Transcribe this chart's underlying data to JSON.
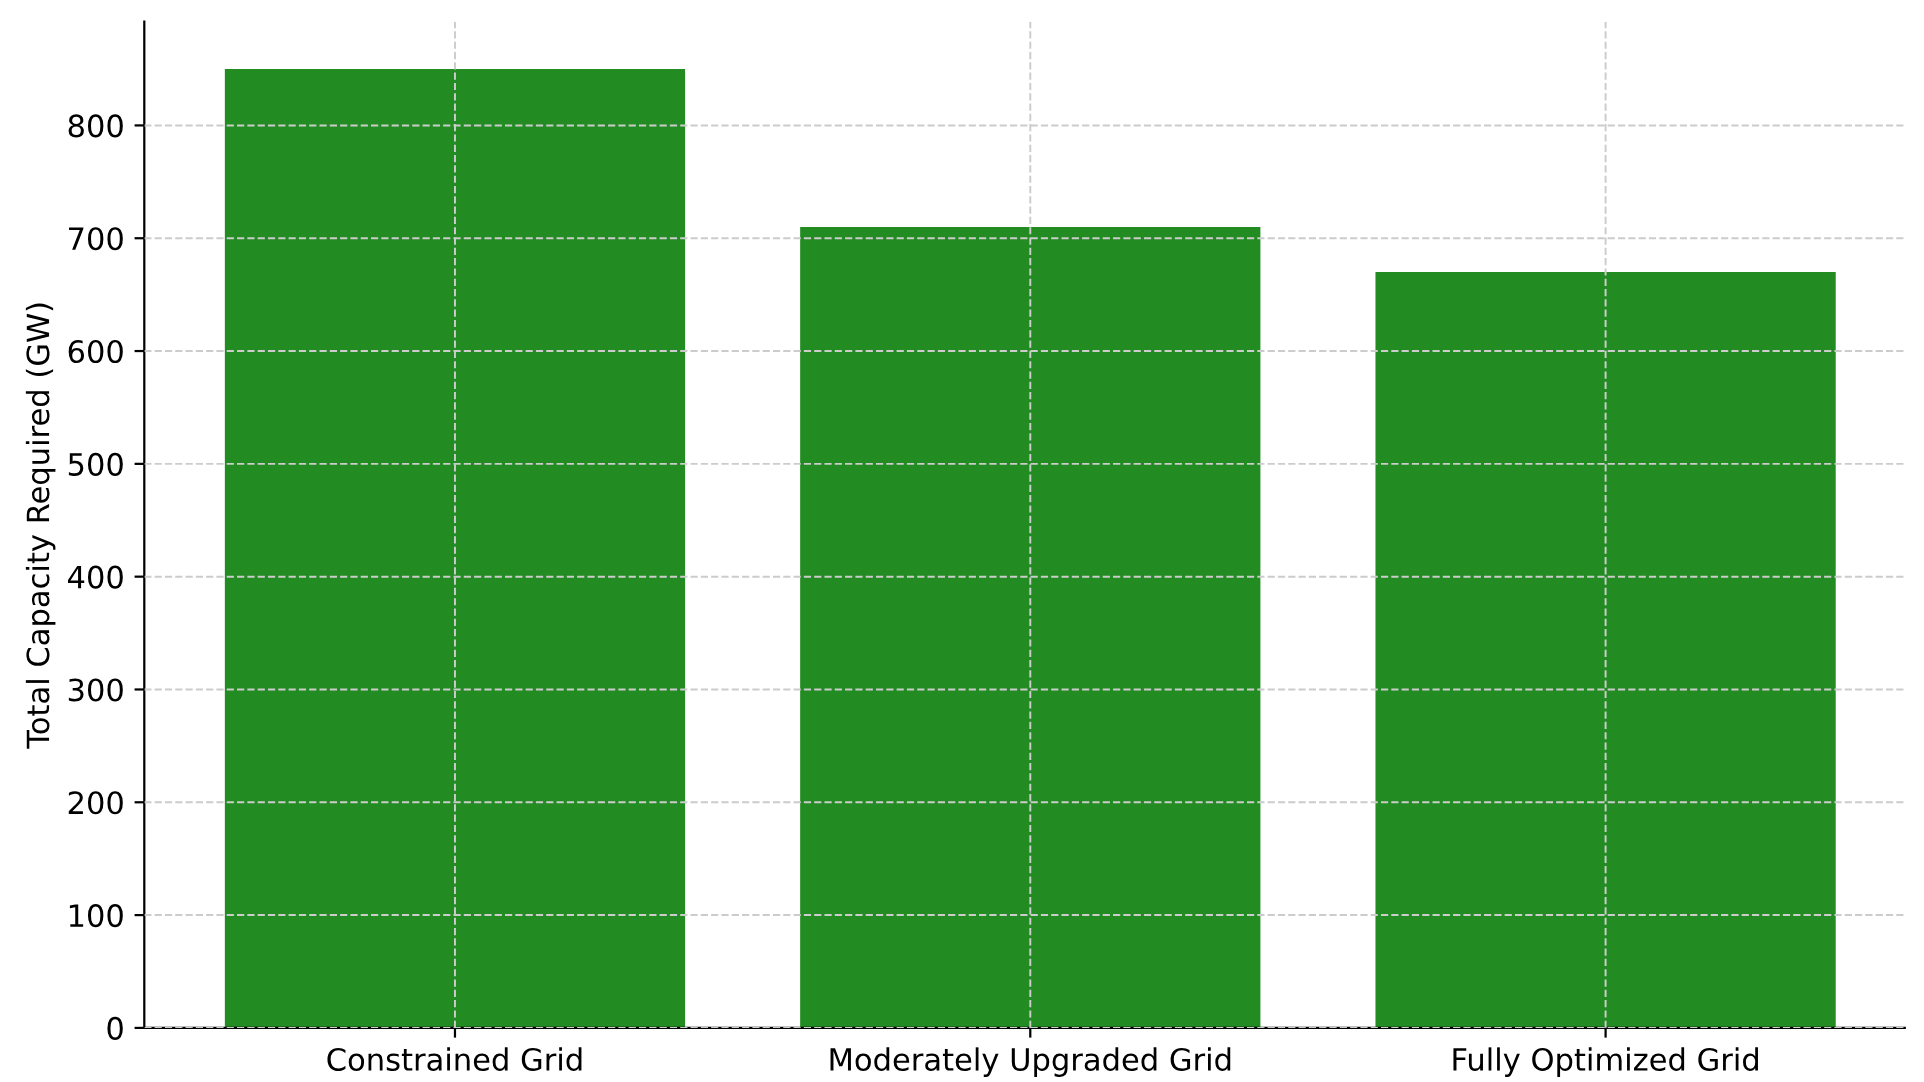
{
  "chart_data": {
    "type": "bar",
    "ylabel": "Total Capacity Required (GW)",
    "categories": [
      "Constrained Grid",
      "Moderately Upgraded Grid",
      "Fully Optimized Grid"
    ],
    "values": [
      850,
      710,
      670
    ],
    "color": "#228b22",
    "ylim": [
      0,
      892
    ],
    "yticks": [
      0,
      100,
      200,
      300,
      400,
      500,
      600,
      700,
      800
    ],
    "grid": true
  }
}
